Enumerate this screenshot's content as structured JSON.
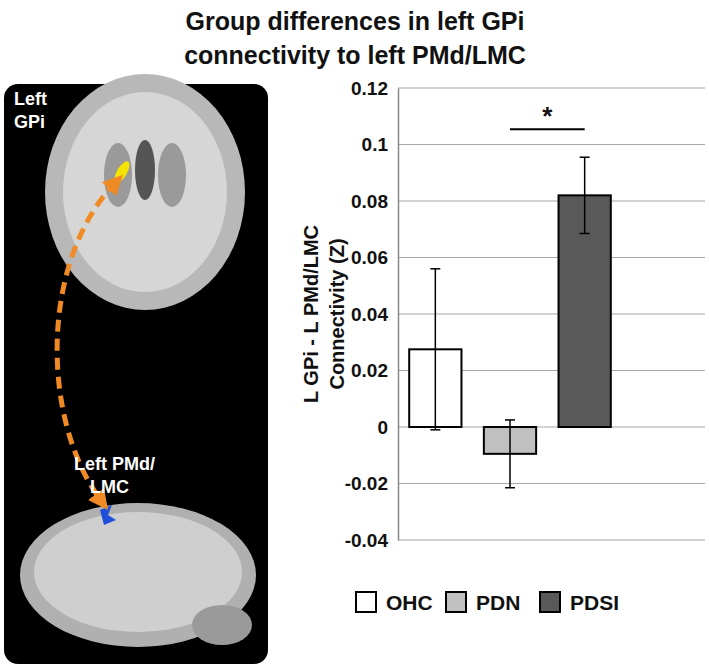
{
  "chart_data": {
    "type": "bar",
    "title": [
      "Group differences in left GPi",
      "connectivity to left PMd/LMC"
    ],
    "y_label": [
      "L GPi - L  PMd/LMC",
      "Connectivity (Z)"
    ],
    "categories": [
      "OHC",
      "PDN",
      "PDSI"
    ],
    "values": [
      0.0275,
      -0.0095,
      0.082
    ],
    "errors": [
      0.0285,
      0.012,
      0.0135
    ],
    "colors": [
      "#ffffff",
      "#c0c0c0",
      "#595959"
    ],
    "ylim": [
      -0.04,
      0.12
    ],
    "yticks": [
      -0.04,
      -0.02,
      0,
      0.02,
      0.04,
      0.06,
      0.08,
      0.1,
      0.12
    ],
    "grid": true,
    "legend": "bottom",
    "tick_labels": "y",
    "annotations": [
      {
        "text": "*",
        "between": [
          "PDN",
          "PDSI"
        ]
      }
    ]
  },
  "image_panel": {
    "labels": [
      [
        "Left",
        "GPi"
      ],
      [
        "Left PMd/",
        "LMC"
      ]
    ]
  }
}
